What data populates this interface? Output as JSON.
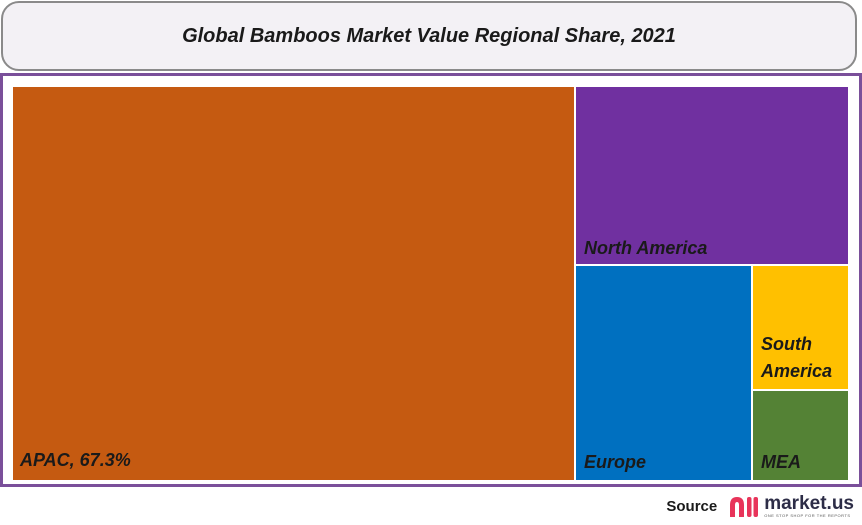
{
  "title": "Global Bamboos Market Value Regional Share, 2021",
  "chart_data": {
    "type": "treemap",
    "title": "Global Bamboos Market Value Regional Share, 2021",
    "items": [
      {
        "name": "APAC",
        "label": "APAC, 67.3%",
        "value": 67.3,
        "color": "#c55a11"
      },
      {
        "name": "North America",
        "label": "North America",
        "value": 14.5,
        "color": "#7030a0"
      },
      {
        "name": "Europe",
        "label": "Europe",
        "value": 10.2,
        "color": "#0070c0"
      },
      {
        "name": "South America",
        "label_lines": [
          "South",
          "America"
        ],
        "value": 4.9,
        "color": "#ffc000"
      },
      {
        "name": "MEA",
        "label": "MEA",
        "value": 3.1,
        "color": "#548235"
      }
    ]
  },
  "footer": {
    "source_label": "Source",
    "brand_name": "market.us",
    "brand_tagline": "ONE STOP SHOP FOR THE REPORTS",
    "brand_color": "#e8345a"
  }
}
